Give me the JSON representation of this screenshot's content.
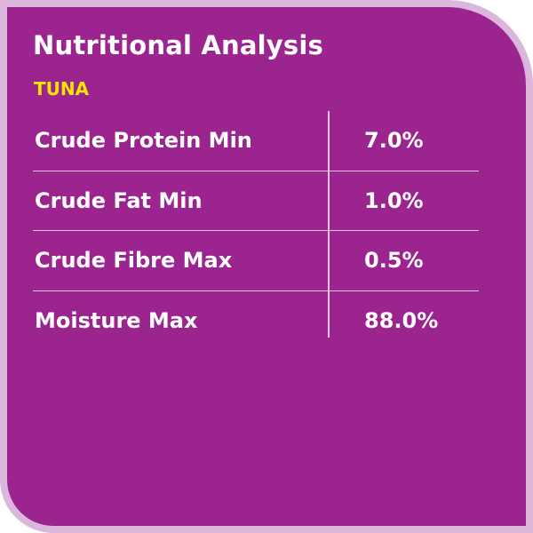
{
  "header": {
    "title": "Nutritional Analysis",
    "subtitle": "TUNA"
  },
  "table": {
    "rows": [
      [
        "Crude Protein Min",
        "7.0%"
      ],
      [
        "Crude Fat Min",
        "1.0%"
      ],
      [
        "Crude Fibre Max",
        "0.5%"
      ],
      [
        "Moisture Max",
        "88.0%"
      ]
    ]
  }
}
